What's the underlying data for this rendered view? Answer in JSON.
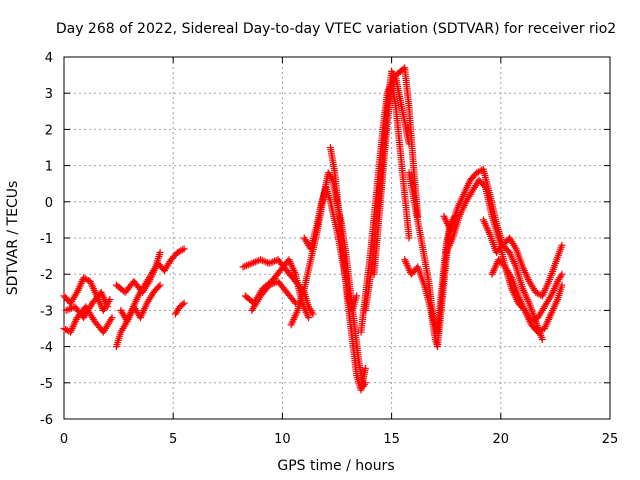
{
  "chart_data": {
    "type": "scatter",
    "title": "Day 268 of 2022, Sidereal Day-to-day VTEC variation (SDTVAR) for receiver rio2",
    "xlabel": "GPS time / hours",
    "ylabel": "SDTVAR / TECUs",
    "xlim": [
      0,
      25
    ],
    "ylim": [
      -6,
      4
    ],
    "xticks": [
      0,
      5,
      10,
      15,
      20,
      25
    ],
    "yticks": [
      -6,
      -5,
      -4,
      -3,
      -2,
      -1,
      0,
      1,
      2,
      3,
      4
    ],
    "grid": true,
    "marker": "+",
    "color": "#ff0000",
    "series": [
      {
        "name": "SDTVAR",
        "tracks": [
          [
            [
              0,
              -3.5
            ],
            [
              0.3,
              -3.6
            ],
            [
              0.6,
              -3.2
            ],
            [
              1.0,
              -2.9
            ],
            [
              1.4,
              -3.3
            ],
            [
              1.8,
              -3.6
            ],
            [
              2.2,
              -3.2
            ]
          ],
          [
            [
              0,
              -2.6
            ],
            [
              0.3,
              -2.8
            ],
            [
              0.6,
              -2.5
            ],
            [
              0.9,
              -2.1
            ],
            [
              1.2,
              -2.2
            ],
            [
              1.5,
              -2.6
            ],
            [
              1.8,
              -3.0
            ],
            [
              2.1,
              -2.7
            ]
          ],
          [
            [
              0.1,
              -3.0
            ],
            [
              0.5,
              -2.9
            ],
            [
              0.9,
              -3.2
            ],
            [
              1.3,
              -2.8
            ],
            [
              1.7,
              -2.5
            ],
            [
              2.0,
              -2.9
            ]
          ],
          [
            [
              2.4,
              -4.0
            ],
            [
              2.6,
              -3.6
            ],
            [
              2.8,
              -3.4
            ],
            [
              3.1,
              -3.0
            ],
            [
              3.4,
              -2.6
            ],
            [
              3.7,
              -2.3
            ],
            [
              4.0,
              -2.0
            ],
            [
              4.3,
              -1.7
            ],
            [
              4.6,
              -1.9
            ],
            [
              4.9,
              -1.6
            ],
            [
              5.2,
              -1.4
            ],
            [
              5.5,
              -1.3
            ]
          ],
          [
            [
              2.6,
              -3.0
            ],
            [
              2.9,
              -3.3
            ],
            [
              3.2,
              -2.9
            ],
            [
              3.5,
              -3.2
            ],
            [
              3.8,
              -2.8
            ],
            [
              4.1,
              -2.5
            ],
            [
              4.4,
              -2.3
            ]
          ],
          [
            [
              2.4,
              -2.3
            ],
            [
              2.8,
              -2.5
            ],
            [
              3.2,
              -2.2
            ],
            [
              3.6,
              -2.5
            ],
            [
              3.9,
              -2.2
            ],
            [
              4.2,
              -1.8
            ],
            [
              4.4,
              -1.4
            ]
          ],
          [
            [
              5.1,
              -3.1
            ],
            [
              5.3,
              -2.9
            ],
            [
              5.5,
              -2.8
            ]
          ],
          [
            [
              8.2,
              -1.8
            ],
            [
              8.6,
              -1.7
            ],
            [
              9.0,
              -1.6
            ],
            [
              9.4,
              -1.7
            ],
            [
              9.8,
              -1.6
            ],
            [
              10.2,
              -1.9
            ],
            [
              10.6,
              -2.2
            ],
            [
              11.0,
              -2.5
            ],
            [
              11.2,
              -2.9
            ],
            [
              11.4,
              -3.1
            ]
          ],
          [
            [
              8.3,
              -2.6
            ],
            [
              8.7,
              -2.8
            ],
            [
              9.1,
              -2.4
            ],
            [
              9.5,
              -2.2
            ],
            [
              9.9,
              -1.9
            ],
            [
              10.3,
              -1.6
            ],
            [
              10.6,
              -2.0
            ],
            [
              10.9,
              -2.8
            ],
            [
              11.2,
              -3.2
            ]
          ],
          [
            [
              8.6,
              -3.0
            ],
            [
              9.0,
              -2.6
            ],
            [
              9.4,
              -2.3
            ],
            [
              9.8,
              -2.2
            ],
            [
              10.2,
              -2.5
            ],
            [
              10.6,
              -2.8
            ]
          ],
          [
            [
              10.4,
              -3.4
            ],
            [
              10.7,
              -3.0
            ],
            [
              11.0,
              -2.4
            ],
            [
              11.3,
              -1.6
            ],
            [
              11.6,
              -0.8
            ],
            [
              11.9,
              0.2
            ],
            [
              12.1,
              0.8
            ],
            [
              12.3,
              0.6
            ],
            [
              12.5,
              0.0
            ],
            [
              12.7,
              -0.6
            ],
            [
              12.9,
              -1.4
            ],
            [
              13.1,
              -2.4
            ],
            [
              13.3,
              -3.4
            ],
            [
              13.5,
              -4.4
            ],
            [
              13.7,
              -5.1
            ],
            [
              13.8,
              -5.0
            ]
          ],
          [
            [
              11.0,
              -1.0
            ],
            [
              11.3,
              -1.3
            ],
            [
              11.6,
              -0.6
            ],
            [
              11.8,
              0.0
            ],
            [
              12.0,
              0.4
            ],
            [
              12.2,
              0.0
            ],
            [
              12.5,
              -0.8
            ],
            [
              12.8,
              -1.8
            ],
            [
              13.0,
              -2.6
            ],
            [
              13.2,
              -3.0
            ],
            [
              13.4,
              -2.6
            ]
          ],
          [
            [
              12.2,
              1.5
            ],
            [
              12.4,
              0.8
            ],
            [
              12.6,
              -0.4
            ],
            [
              12.8,
              -1.6
            ],
            [
              13.0,
              -2.8
            ],
            [
              13.2,
              -3.8
            ],
            [
              13.4,
              -4.8
            ],
            [
              13.6,
              -5.2
            ],
            [
              13.8,
              -4.6
            ]
          ],
          [
            [
              13.6,
              -3.6
            ],
            [
              13.8,
              -2.6
            ],
            [
              14.0,
              -1.6
            ],
            [
              14.2,
              -0.4
            ],
            [
              14.4,
              0.8
            ],
            [
              14.6,
              2.0
            ],
            [
              14.8,
              3.0
            ],
            [
              15.0,
              3.3
            ],
            [
              15.2,
              2.6
            ],
            [
              15.4,
              1.4
            ],
            [
              15.6,
              0.2
            ],
            [
              15.8,
              -1.0
            ]
          ],
          [
            [
              13.8,
              -3.0
            ],
            [
              14.0,
              -2.2
            ],
            [
              14.2,
              -1.2
            ],
            [
              14.4,
              0.0
            ],
            [
              14.6,
              1.4
            ],
            [
              14.8,
              2.6
            ],
            [
              15.0,
              3.6
            ],
            [
              15.2,
              3.4
            ],
            [
              15.4,
              2.8
            ],
            [
              15.6,
              2.2
            ],
            [
              15.8,
              1.6
            ]
          ],
          [
            [
              14.2,
              -2.0
            ],
            [
              14.4,
              -0.6
            ],
            [
              14.6,
              0.8
            ],
            [
              14.8,
              2.2
            ],
            [
              15.0,
              3.2
            ],
            [
              15.2,
              3.5
            ],
            [
              15.4,
              3.6
            ],
            [
              15.6,
              3.7
            ],
            [
              15.8,
              2.6
            ],
            [
              16.0,
              1.0
            ],
            [
              16.2,
              -0.4
            ]
          ],
          [
            [
              15.6,
              -1.6
            ],
            [
              15.9,
              -2.0
            ],
            [
              16.2,
              -1.8
            ],
            [
              16.5,
              -2.3
            ],
            [
              16.8,
              -3.0
            ],
            [
              17.0,
              -3.8
            ],
            [
              17.1,
              -4.0
            ],
            [
              17.3,
              -2.8
            ],
            [
              17.5,
              -1.6
            ],
            [
              17.7,
              -0.6
            ],
            [
              17.9,
              -0.4
            ]
          ],
          [
            [
              15.8,
              0.8
            ],
            [
              16.1,
              -0.2
            ],
            [
              16.4,
              -1.2
            ],
            [
              16.7,
              -2.2
            ],
            [
              16.9,
              -3.2
            ],
            [
              17.1,
              -3.6
            ],
            [
              17.3,
              -2.4
            ],
            [
              17.5,
              -1.2
            ],
            [
              17.7,
              -0.6
            ]
          ],
          [
            [
              17.4,
              -0.4
            ],
            [
              17.7,
              -0.8
            ],
            [
              18.0,
              -0.2
            ],
            [
              18.3,
              0.2
            ],
            [
              18.6,
              0.6
            ],
            [
              18.9,
              0.8
            ],
            [
              19.2,
              0.9
            ],
            [
              19.5,
              0.2
            ],
            [
              19.8,
              -0.6
            ],
            [
              20.1,
              -1.2
            ],
            [
              20.4,
              -1.4
            ],
            [
              20.7,
              -1.8
            ],
            [
              21.0,
              -2.4
            ],
            [
              21.3,
              -2.8
            ],
            [
              21.6,
              -3.3
            ],
            [
              21.9,
              -3.8
            ]
          ],
          [
            [
              17.5,
              -1.4
            ],
            [
              17.8,
              -1.0
            ],
            [
              18.1,
              -0.4
            ],
            [
              18.4,
              0.0
            ],
            [
              18.7,
              0.3
            ],
            [
              19.0,
              0.6
            ],
            [
              19.3,
              0.4
            ],
            [
              19.6,
              -0.4
            ],
            [
              19.9,
              -1.0
            ],
            [
              20.2,
              -1.8
            ],
            [
              20.5,
              -2.4
            ],
            [
              20.8,
              -2.8
            ],
            [
              21.1,
              -3.0
            ],
            [
              21.4,
              -3.3
            ],
            [
              21.7,
              -3.2
            ],
            [
              22.0,
              -2.9
            ],
            [
              22.3,
              -2.6
            ],
            [
              22.6,
              -2.2
            ],
            [
              22.8,
              -2.0
            ]
          ],
          [
            [
              19.2,
              -0.5
            ],
            [
              19.5,
              -0.9
            ],
            [
              19.8,
              -1.4
            ],
            [
              20.1,
              -1.2
            ],
            [
              20.4,
              -1.0
            ],
            [
              20.7,
              -1.3
            ],
            [
              21.0,
              -1.8
            ],
            [
              21.3,
              -2.2
            ],
            [
              21.6,
              -2.5
            ],
            [
              21.9,
              -2.6
            ],
            [
              22.2,
              -2.2
            ],
            [
              22.5,
              -1.7
            ],
            [
              22.8,
              -1.2
            ]
          ],
          [
            [
              19.6,
              -2.0
            ],
            [
              19.9,
              -1.6
            ],
            [
              20.2,
              -1.8
            ],
            [
              20.5,
              -2.1
            ],
            [
              20.8,
              -2.6
            ],
            [
              21.1,
              -3.0
            ],
            [
              21.4,
              -3.4
            ],
            [
              21.7,
              -3.6
            ],
            [
              22.0,
              -3.5
            ],
            [
              22.3,
              -3.1
            ],
            [
              22.6,
              -2.7
            ],
            [
              22.8,
              -2.3
            ]
          ]
        ]
      }
    ]
  }
}
